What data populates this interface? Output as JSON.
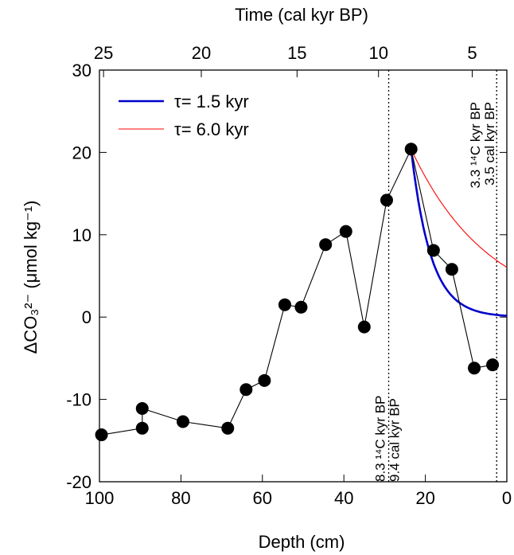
{
  "chart_data": {
    "type": "scatter",
    "xlabel": "Depth (cm)",
    "top_xlabel": "Time (cal kyr BP)",
    "ylabel": "ΔCO₃²⁻ (μmol kg⁻¹)",
    "xlim": [
      100,
      0
    ],
    "ylim": [
      -20,
      30
    ],
    "x_ticks": [
      100,
      80,
      60,
      40,
      20,
      0
    ],
    "y_ticks": [
      -20,
      -10,
      0,
      10,
      20,
      30
    ],
    "top_ticks": [
      {
        "label": "25",
        "depth": 99
      },
      {
        "label": "20",
        "depth": 75
      },
      {
        "label": "15",
        "depth": 51.5
      },
      {
        "label": "10",
        "depth": 31.5
      },
      {
        "label": "5",
        "depth": 8.5
      }
    ],
    "series": [
      {
        "type": "line+markers",
        "color": "#000000",
        "points": [
          [
            99.5,
            -14.3
          ],
          [
            89.5,
            -13.5
          ],
          [
            89.5,
            -11.1
          ],
          [
            79.5,
            -12.7
          ],
          [
            68.5,
            -13.5
          ],
          [
            64,
            -8.8
          ],
          [
            59.5,
            -7.7
          ],
          [
            54.5,
            1.5
          ],
          [
            50.5,
            1.2
          ],
          [
            44.5,
            8.8
          ],
          [
            39.5,
            10.4
          ],
          [
            35,
            -1.2
          ],
          [
            29.5,
            14.2
          ],
          [
            23.5,
            20.4
          ],
          [
            18,
            8.1
          ],
          [
            13.5,
            5.8
          ],
          [
            8,
            -6.2
          ],
          [
            3.5,
            -5.8
          ]
        ]
      },
      {
        "name": "τ= 1.5 kyr",
        "type": "decay",
        "color": "#0000cc",
        "start_depth": 23.5,
        "start_value": 20.4,
        "tau": 1.5,
        "depth_per_kyr": 3.22
      },
      {
        "name": "τ= 6.0 kyr",
        "type": "decay",
        "color": "#ff0000",
        "start_depth": 23.5,
        "start_value": 20.4,
        "tau": 6.0,
        "depth_per_kyr": 3.22
      }
    ],
    "vlines": [
      {
        "depth": 29,
        "line1": "8.3 ¹⁴C kyr BP",
        "line2": "9.4 cal kyr BP"
      },
      {
        "depth": 2.5,
        "line1": "3.3 ¹⁴C kyr BP",
        "line2": "3.5 cal kyr BP"
      }
    ],
    "legend": {
      "position": "top-left"
    }
  }
}
